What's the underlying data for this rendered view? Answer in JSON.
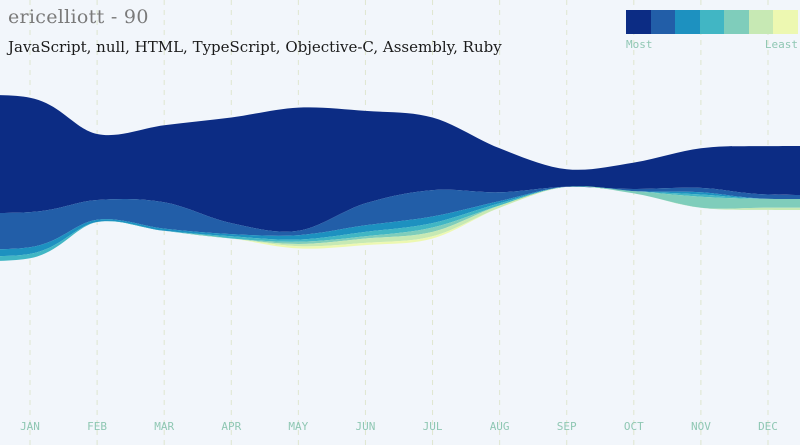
{
  "header": {
    "title": "ericelliott - 90",
    "subtitle": "JavaScript, null, HTML, TypeScript, Objective-C, Assembly, Ruby"
  },
  "legend": {
    "most_label": "Most",
    "least_label": "Least",
    "colors": [
      "#0c2c84",
      "#225ea8",
      "#1d91c0",
      "#41b6c4",
      "#7fcdbb",
      "#c7e9b4",
      "#edf8b1"
    ]
  },
  "chart_data": {
    "type": "area",
    "stacked": "streamgraph",
    "categories": [
      "JAN",
      "FEB",
      "MAR",
      "APR",
      "MAY",
      "JUN",
      "JUL",
      "AUG",
      "SEP",
      "OCT",
      "NOV",
      "DEC"
    ],
    "series": [
      {
        "name": "JavaScript",
        "color": "#0c2c84",
        "values": [
          52,
          30,
          35,
          48,
          56,
          42,
          33,
          20,
          8,
          12,
          18,
          22
        ]
      },
      {
        "name": "null",
        "color": "#225ea8",
        "values": [
          16,
          9,
          12,
          5,
          2,
          10,
          12,
          4,
          0,
          1,
          2,
          2
        ]
      },
      {
        "name": "HTML",
        "color": "#1d91c0",
        "values": [
          3,
          1,
          1,
          1,
          2,
          3,
          3,
          1,
          0,
          0,
          1,
          0
        ]
      },
      {
        "name": "TypeScript",
        "color": "#41b6c4",
        "values": [
          2,
          0,
          0,
          1,
          1,
          2,
          2,
          1,
          0,
          0,
          1,
          0
        ]
      },
      {
        "name": "Objective-C",
        "color": "#7fcdbb",
        "values": [
          0,
          0,
          0,
          0,
          1,
          1,
          2,
          0,
          0,
          1,
          5,
          4
        ]
      },
      {
        "name": "Assembly",
        "color": "#c7e9b4",
        "values": [
          0,
          0,
          0,
          0,
          1,
          2,
          2,
          1,
          0,
          0,
          0,
          1
        ]
      },
      {
        "name": "Ruby",
        "color": "#edf8b1",
        "values": [
          0,
          0,
          0,
          0,
          1,
          1,
          1,
          0,
          0,
          0,
          0,
          0
        ]
      }
    ],
    "legend_placement": "top-right",
    "grid": "vertical-dashed"
  }
}
